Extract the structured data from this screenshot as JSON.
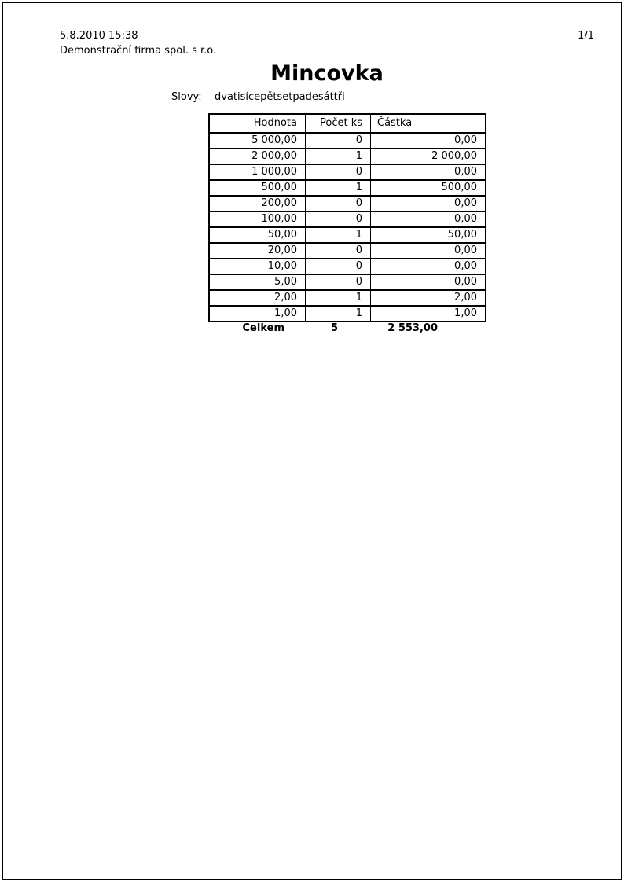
{
  "page": {
    "datetime": "5.8.2010 15:38",
    "company": "Demonstrační firma spol. s r.o.",
    "page_number": "1/1"
  },
  "title": "Mincovka",
  "slovy": {
    "label": "Slovy:",
    "value": "dvatisícepětsetpadesáttři"
  },
  "table": {
    "headers": [
      "Hodnota",
      "Počet ks",
      "Částka"
    ],
    "rows": [
      {
        "hodnota": "5 000,00",
        "pocet_ks": "0",
        "castka": "0,00"
      },
      {
        "hodnota": "2 000,00",
        "pocet_ks": "1",
        "castka": "2 000,00"
      },
      {
        "hodnota": "1 000,00",
        "pocet_ks": "0",
        "castka": "0,00"
      },
      {
        "hodnota": "500,00",
        "pocet_ks": "1",
        "castka": "500,00"
      },
      {
        "hodnota": "200,00",
        "pocet_ks": "0",
        "castka": "0,00"
      },
      {
        "hodnota": "100,00",
        "pocet_ks": "0",
        "castka": "0,00"
      },
      {
        "hodnota": "50,00",
        "pocet_ks": "1",
        "castka": "50,00"
      },
      {
        "hodnota": "20,00",
        "pocet_ks": "0",
        "castka": "0,00"
      },
      {
        "hodnota": "10,00",
        "pocet_ks": "0",
        "castka": "0,00"
      },
      {
        "hodnota": "5,00",
        "pocet_ks": "0",
        "castka": "0,00"
      },
      {
        "hodnota": "2,00",
        "pocet_ks": "1",
        "castka": "2,00"
      },
      {
        "hodnota": "1,00",
        "pocet_ks": "1",
        "castka": "1,00"
      }
    ],
    "footer": {
      "label": "Celkem",
      "pocet_ks": "5",
      "castka": "2 553,00"
    }
  },
  "colors": {
    "text": "#000000",
    "border": "#000000",
    "background": "#ffffff"
  }
}
